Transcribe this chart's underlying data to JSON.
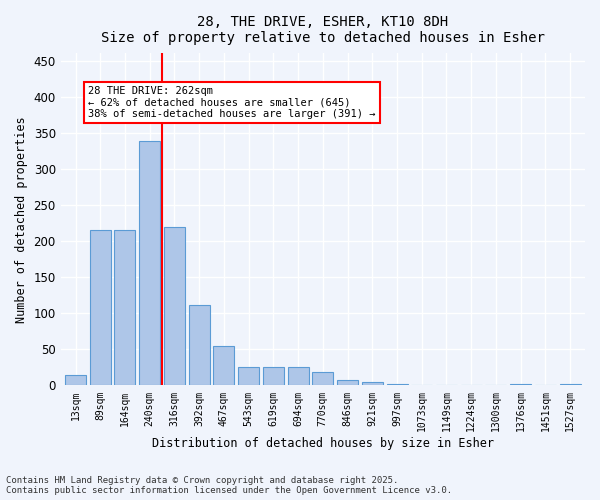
{
  "title1": "28, THE DRIVE, ESHER, KT10 8DH",
  "title2": "Size of property relative to detached houses in Esher",
  "xlabel": "Distribution of detached houses by size in Esher",
  "ylabel": "Number of detached properties",
  "categories": [
    "13sqm",
    "89sqm",
    "164sqm",
    "240sqm",
    "316sqm",
    "392sqm",
    "467sqm",
    "543sqm",
    "619sqm",
    "694sqm",
    "770sqm",
    "846sqm",
    "921sqm",
    "997sqm",
    "1073sqm",
    "1149sqm",
    "1224sqm",
    "1300sqm",
    "1376sqm",
    "1451sqm",
    "1527sqm"
  ],
  "values": [
    15,
    215,
    215,
    338,
    220,
    111,
    54,
    26,
    25,
    25,
    18,
    8,
    5,
    2,
    1,
    0,
    0,
    0,
    2,
    0,
    2
  ],
  "bar_color": "#aec6e8",
  "bar_edgecolor": "#5b9bd5",
  "vline_x": 3.5,
  "vline_color": "red",
  "annotation_text": "28 THE DRIVE: 262sqm\n← 62% of detached houses are smaller (645)\n38% of semi-detached houses are larger (391) →",
  "annotation_box_color": "white",
  "annotation_box_edgecolor": "red",
  "ylim": [
    0,
    460
  ],
  "yticks": [
    0,
    50,
    100,
    150,
    200,
    250,
    300,
    350,
    400,
    450
  ],
  "footnote1": "Contains HM Land Registry data © Crown copyright and database right 2025.",
  "footnote2": "Contains public sector information licensed under the Open Government Licence v3.0.",
  "bg_color": "#f0f4fc",
  "grid_color": "#ffffff"
}
